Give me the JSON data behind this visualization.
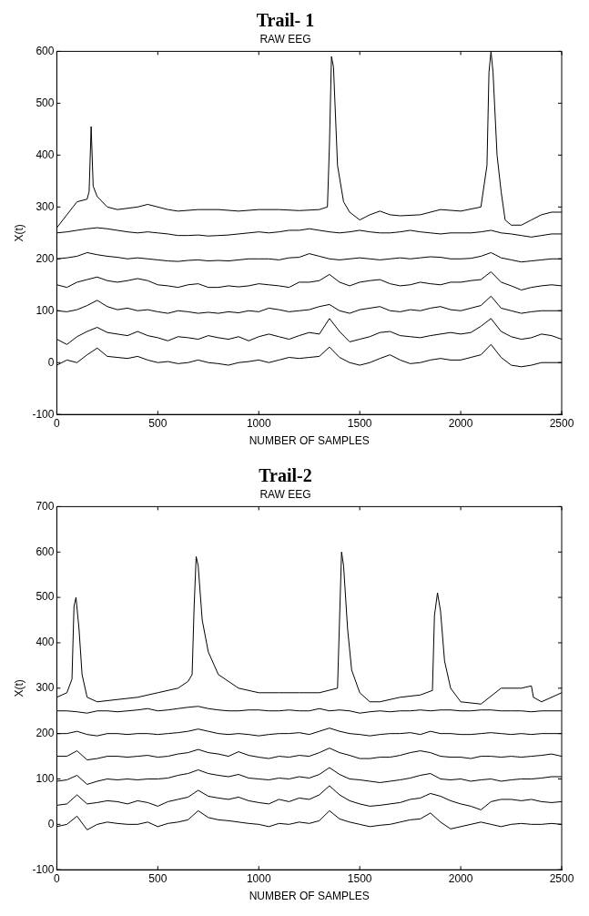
{
  "chart_data": [
    {
      "type": "line",
      "title": "Trail- 1",
      "subtitle": "RAW EEG",
      "xlabel": "NUMBER OF SAMPLES",
      "ylabel": "X(t)",
      "xlim": [
        0,
        2500
      ],
      "xticks": [
        0,
        500,
        1000,
        1500,
        2000,
        2500
      ],
      "ylim": [
        -100,
        600
      ],
      "yticks": [
        -100,
        0,
        100,
        200,
        300,
        400,
        500,
        600
      ],
      "grid": false,
      "legend": false,
      "marker": "none",
      "line_style": "solid",
      "x": [
        0,
        50,
        100,
        150,
        200,
        250,
        300,
        350,
        400,
        450,
        500,
        550,
        600,
        650,
        700,
        750,
        800,
        850,
        900,
        950,
        1000,
        1050,
        1100,
        1150,
        1200,
        1250,
        1300,
        1350,
        1400,
        1450,
        1500,
        1550,
        1600,
        1650,
        1700,
        1750,
        1800,
        1850,
        1900,
        1950,
        2000,
        2050,
        2100,
        2150,
        2200,
        2250,
        2300,
        2350,
        2400,
        2450,
        2500
      ],
      "series": [
        {
          "color": "#000000",
          "x": [
            0,
            50,
            100,
            150,
            160,
            170,
            180,
            200,
            250,
            300,
            400,
            450,
            550,
            600,
            700,
            800,
            900,
            1000,
            1100,
            1200,
            1300,
            1340,
            1350,
            1360,
            1370,
            1390,
            1420,
            1450,
            1500,
            1550,
            1600,
            1650,
            1700,
            1800,
            1900,
            2000,
            2100,
            2130,
            2140,
            2150,
            2160,
            2180,
            2200,
            2220,
            2250,
            2300,
            2350,
            2400,
            2450,
            2500
          ],
          "values": [
            260,
            285,
            310,
            315,
            330,
            455,
            340,
            320,
            300,
            295,
            300,
            305,
            295,
            292,
            295,
            295,
            292,
            295,
            295,
            293,
            295,
            300,
            420,
            590,
            570,
            380,
            310,
            290,
            275,
            285,
            292,
            285,
            283,
            285,
            295,
            292,
            300,
            380,
            560,
            600,
            560,
            400,
            330,
            275,
            265,
            265,
            275,
            285,
            290,
            290
          ]
        },
        {
          "color": "#000000",
          "values": [
            250,
            252,
            255,
            258,
            260,
            258,
            255,
            252,
            250,
            252,
            250,
            248,
            245,
            245,
            246,
            244,
            245,
            246,
            248,
            250,
            252,
            250,
            252,
            255,
            255,
            258,
            255,
            252,
            250,
            252,
            255,
            252,
            250,
            250,
            252,
            255,
            252,
            250,
            248,
            250,
            250,
            250,
            252,
            255,
            250,
            248,
            245,
            242,
            245,
            248,
            248
          ]
        },
        {
          "color": "#000000",
          "values": [
            200,
            202,
            205,
            212,
            208,
            205,
            203,
            200,
            202,
            200,
            198,
            196,
            195,
            197,
            198,
            196,
            197,
            196,
            198,
            200,
            200,
            200,
            198,
            202,
            203,
            210,
            205,
            200,
            198,
            200,
            202,
            200,
            198,
            200,
            202,
            200,
            202,
            204,
            203,
            200,
            200,
            201,
            205,
            212,
            202,
            198,
            194,
            196,
            198,
            200,
            200
          ]
        },
        {
          "color": "#000000",
          "values": [
            150,
            145,
            155,
            160,
            165,
            158,
            155,
            158,
            162,
            158,
            150,
            148,
            145,
            150,
            152,
            145,
            145,
            148,
            146,
            148,
            152,
            150,
            148,
            145,
            155,
            155,
            158,
            170,
            155,
            148,
            155,
            158,
            160,
            152,
            148,
            150,
            155,
            152,
            150,
            155,
            155,
            158,
            160,
            175,
            155,
            148,
            140,
            145,
            148,
            150,
            148
          ]
        },
        {
          "color": "#000000",
          "values": [
            100,
            98,
            102,
            110,
            120,
            108,
            102,
            105,
            100,
            102,
            98,
            95,
            100,
            98,
            95,
            97,
            95,
            98,
            96,
            100,
            98,
            105,
            102,
            98,
            100,
            102,
            108,
            112,
            100,
            95,
            102,
            105,
            108,
            100,
            98,
            102,
            100,
            105,
            108,
            102,
            100,
            105,
            110,
            128,
            105,
            100,
            95,
            98,
            100,
            100,
            100
          ]
        },
        {
          "color": "#000000",
          "values": [
            45,
            35,
            50,
            60,
            68,
            58,
            55,
            52,
            60,
            52,
            48,
            42,
            50,
            48,
            45,
            52,
            48,
            45,
            50,
            42,
            50,
            55,
            50,
            45,
            52,
            58,
            55,
            85,
            60,
            40,
            45,
            50,
            58,
            60,
            52,
            50,
            48,
            52,
            55,
            58,
            55,
            58,
            70,
            85,
            60,
            50,
            45,
            48,
            55,
            52,
            45
          ]
        },
        {
          "color": "#000000",
          "values": [
            -5,
            5,
            0,
            15,
            28,
            12,
            10,
            8,
            12,
            5,
            0,
            2,
            -2,
            0,
            5,
            0,
            -2,
            -5,
            0,
            2,
            5,
            0,
            5,
            10,
            8,
            10,
            12,
            30,
            10,
            0,
            -5,
            0,
            8,
            15,
            5,
            -2,
            0,
            5,
            8,
            5,
            5,
            10,
            15,
            35,
            10,
            -5,
            -8,
            -5,
            0,
            0,
            0
          ]
        }
      ]
    },
    {
      "type": "line",
      "title": "Trail-2",
      "subtitle": "RAW EEG",
      "xlabel": "NUMBER OF SAMPLES",
      "ylabel": "X(t)",
      "xlim": [
        0,
        2500
      ],
      "xticks": [
        0,
        500,
        1000,
        1500,
        2000,
        2500
      ],
      "ylim": [
        -100,
        700
      ],
      "yticks": [
        -100,
        0,
        100,
        200,
        300,
        400,
        500,
        600,
        700
      ],
      "grid": false,
      "legend": false,
      "marker": "none",
      "line_style": "solid",
      "x": [
        0,
        50,
        100,
        150,
        200,
        250,
        300,
        350,
        400,
        450,
        500,
        550,
        600,
        650,
        700,
        750,
        800,
        850,
        900,
        950,
        1000,
        1050,
        1100,
        1150,
        1200,
        1250,
        1300,
        1350,
        1400,
        1450,
        1500,
        1550,
        1600,
        1650,
        1700,
        1750,
        1800,
        1850,
        1900,
        1950,
        2000,
        2050,
        2100,
        2150,
        2200,
        2250,
        2300,
        2350,
        2400,
        2450,
        2500
      ],
      "series": [
        {
          "color": "#000000",
          "x": [
            0,
            50,
            75,
            85,
            95,
            110,
            125,
            150,
            200,
            300,
            400,
            500,
            600,
            650,
            670,
            680,
            690,
            700,
            720,
            750,
            780,
            800,
            900,
            1000,
            1100,
            1200,
            1300,
            1390,
            1400,
            1410,
            1420,
            1440,
            1460,
            1500,
            1550,
            1600,
            1700,
            1800,
            1860,
            1870,
            1885,
            1900,
            1920,
            1950,
            2000,
            2100,
            2200,
            2300,
            2350,
            2360,
            2400,
            2500
          ],
          "values": [
            280,
            290,
            320,
            480,
            500,
            430,
            330,
            280,
            270,
            275,
            280,
            290,
            300,
            315,
            330,
            480,
            590,
            570,
            450,
            380,
            350,
            330,
            300,
            290,
            290,
            290,
            290,
            300,
            450,
            600,
            570,
            430,
            340,
            290,
            270,
            270,
            280,
            285,
            295,
            460,
            510,
            470,
            360,
            300,
            270,
            265,
            300,
            300,
            305,
            280,
            270,
            290
          ]
        },
        {
          "color": "#000000",
          "values": [
            250,
            250,
            248,
            245,
            250,
            250,
            248,
            250,
            252,
            255,
            250,
            252,
            255,
            258,
            260,
            255,
            252,
            250,
            250,
            252,
            252,
            250,
            250,
            252,
            250,
            250,
            255,
            250,
            252,
            250,
            245,
            248,
            250,
            248,
            250,
            250,
            252,
            250,
            252,
            252,
            250,
            250,
            252,
            252,
            250,
            250,
            250,
            248,
            250,
            250,
            250
          ]
        },
        {
          "color": "#000000",
          "values": [
            200,
            200,
            205,
            198,
            195,
            200,
            200,
            198,
            200,
            200,
            198,
            200,
            202,
            205,
            210,
            205,
            200,
            198,
            200,
            198,
            195,
            198,
            200,
            200,
            202,
            198,
            205,
            212,
            205,
            200,
            198,
            195,
            198,
            200,
            200,
            202,
            198,
            205,
            200,
            200,
            198,
            198,
            200,
            202,
            200,
            198,
            200,
            198,
            200,
            200,
            200
          ]
        },
        {
          "color": "#000000",
          "values": [
            150,
            150,
            162,
            142,
            145,
            150,
            150,
            148,
            150,
            152,
            148,
            150,
            155,
            158,
            165,
            158,
            155,
            150,
            160,
            152,
            148,
            145,
            150,
            148,
            152,
            150,
            158,
            168,
            158,
            152,
            145,
            145,
            148,
            148,
            152,
            158,
            162,
            158,
            150,
            148,
            148,
            145,
            150,
            150,
            148,
            150,
            148,
            150,
            152,
            155,
            150
          ]
        },
        {
          "color": "#000000",
          "values": [
            95,
            98,
            108,
            88,
            95,
            100,
            98,
            100,
            98,
            100,
            100,
            102,
            108,
            112,
            120,
            112,
            108,
            105,
            110,
            102,
            100,
            98,
            102,
            100,
            105,
            102,
            110,
            125,
            110,
            100,
            98,
            95,
            92,
            95,
            98,
            102,
            108,
            112,
            100,
            98,
            100,
            95,
            98,
            100,
            95,
            98,
            100,
            100,
            102,
            105,
            105
          ]
        },
        {
          "color": "#000000",
          "values": [
            42,
            45,
            65,
            45,
            48,
            52,
            50,
            45,
            52,
            48,
            40,
            50,
            55,
            60,
            75,
            62,
            58,
            55,
            60,
            52,
            48,
            45,
            55,
            50,
            58,
            55,
            65,
            85,
            65,
            52,
            45,
            40,
            42,
            45,
            48,
            55,
            58,
            68,
            62,
            52,
            45,
            40,
            32,
            50,
            55,
            55,
            52,
            55,
            50,
            48,
            50
          ]
        },
        {
          "color": "#000000",
          "values": [
            -5,
            0,
            18,
            -12,
            0,
            5,
            2,
            0,
            0,
            5,
            -5,
            2,
            5,
            10,
            30,
            15,
            10,
            8,
            5,
            2,
            0,
            -5,
            2,
            0,
            5,
            2,
            8,
            30,
            12,
            5,
            0,
            -5,
            -2,
            0,
            5,
            10,
            12,
            25,
            5,
            -10,
            -5,
            0,
            5,
            0,
            -5,
            0,
            2,
            0,
            0,
            2,
            0
          ]
        }
      ]
    }
  ]
}
